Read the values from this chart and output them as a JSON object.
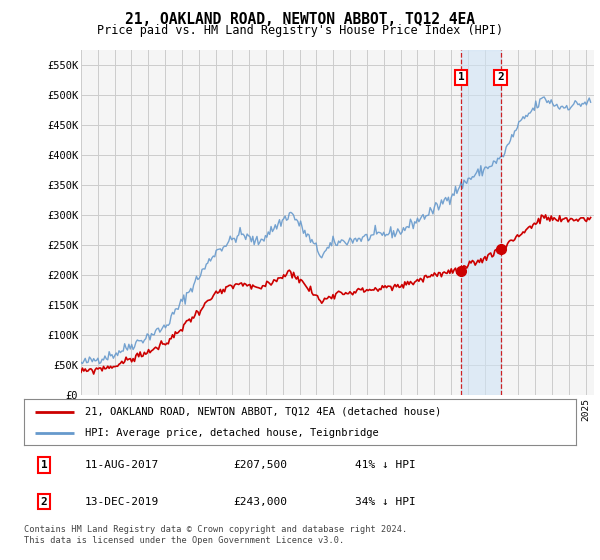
{
  "title": "21, OAKLAND ROAD, NEWTON ABBOT, TQ12 4EA",
  "subtitle": "Price paid vs. HM Land Registry's House Price Index (HPI)",
  "legend_line1": "21, OAKLAND ROAD, NEWTON ABBOT, TQ12 4EA (detached house)",
  "legend_line2": "HPI: Average price, detached house, Teignbridge",
  "annotation1_date": "11-AUG-2017",
  "annotation1_price": "£207,500",
  "annotation1_hpi": "41% ↓ HPI",
  "annotation1_year": 2017.6,
  "annotation1_value": 207500,
  "annotation2_date": "13-DEC-2019",
  "annotation2_price": "£243,000",
  "annotation2_hpi": "34% ↓ HPI",
  "annotation2_year": 2019.95,
  "annotation2_value": 243000,
  "red_line_color": "#cc0000",
  "blue_line_color": "#6699cc",
  "blue_fill_color": "#d0e4f5",
  "grid_color": "#cccccc",
  "background_color": "#ffffff",
  "plot_bg_color": "#f5f5f5",
  "footer_text": "Contains HM Land Registry data © Crown copyright and database right 2024.\nThis data is licensed under the Open Government Licence v3.0.",
  "ylim": [
    0,
    575000
  ],
  "yticks": [
    0,
    50000,
    100000,
    150000,
    200000,
    250000,
    300000,
    350000,
    400000,
    450000,
    500000,
    550000
  ],
  "xmin": 1995,
  "xmax": 2025.5,
  "hpi_seed": 42,
  "red_seed": 99
}
